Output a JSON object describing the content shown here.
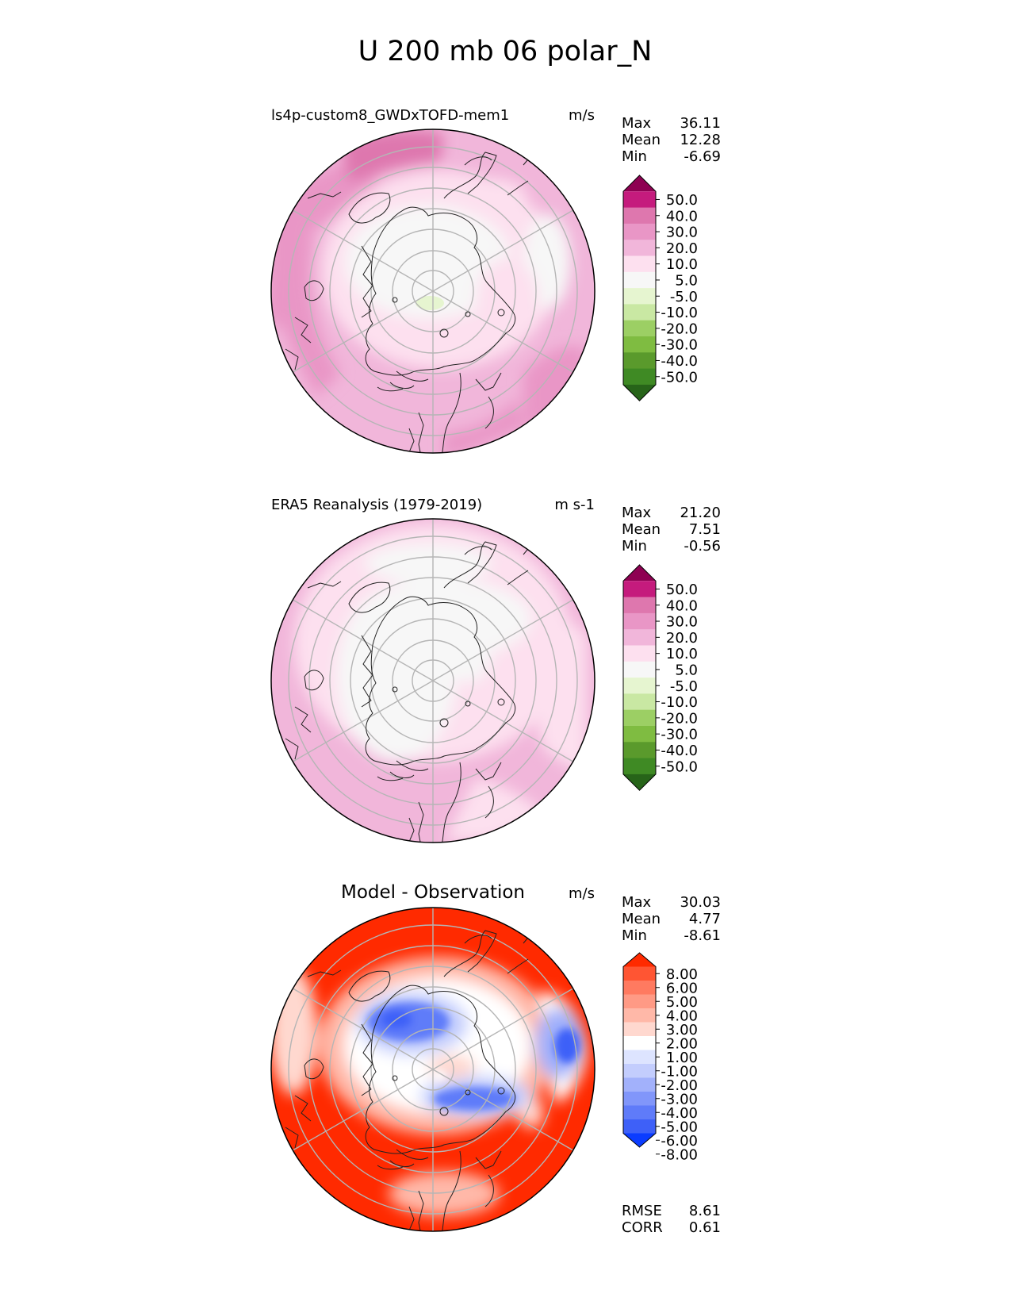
{
  "page_title": "U 200 mb 06 polar_N",
  "colors": {
    "seq": [
      "#8e0152",
      "#c51b7d",
      "#de77ae",
      "#e996c6",
      "#f1b6da",
      "#fde0ef",
      "#f7f7f7",
      "#e6f5d0",
      "#c9e8a3",
      "#9ccf64",
      "#7fbc41",
      "#5a9a2c",
      "#3f8a24",
      "#276419"
    ],
    "div": [
      "#ff2a00",
      "#ff5533",
      "#ff7a60",
      "#ff9a85",
      "#ffb8a8",
      "#ffd8cf",
      "#ffffff",
      "#dde4ff",
      "#c3cdfd",
      "#a2b1fb",
      "#8196fa",
      "#5f7bf9",
      "#3e60f8",
      "#0b3cff"
    ],
    "land": "#222222",
    "grid": "#b5b5b5"
  },
  "panels": [
    {
      "id": "model",
      "title": "ls4p-custom8_GWDxTOFD-mem1",
      "units": "m/s",
      "stats": [
        {
          "label": "Max",
          "value": "36.11"
        },
        {
          "label": "Mean",
          "value": "12.28"
        },
        {
          "label": "Min",
          "value": "-6.69"
        }
      ],
      "colorbar_ticks": [
        "50.0",
        "40.0",
        "30.0",
        "20.0",
        "10.0",
        "5.0",
        "-5.0",
        "-10.0",
        "-20.0",
        "-30.0",
        "-40.0",
        "-50.0"
      ]
    },
    {
      "id": "obs",
      "title": "ERA5 Reanalysis (1979-2019)",
      "units": "m s-1",
      "stats": [
        {
          "label": "Max",
          "value": "21.20"
        },
        {
          "label": "Mean",
          "value": "7.51"
        },
        {
          "label": "Min",
          "value": "-0.56"
        }
      ],
      "colorbar_ticks": [
        "50.0",
        "40.0",
        "30.0",
        "20.0",
        "10.0",
        "5.0",
        "-5.0",
        "-10.0",
        "-20.0",
        "-30.0",
        "-40.0",
        "-50.0"
      ]
    },
    {
      "id": "diff",
      "title": "Model - Observation",
      "units": "m/s",
      "stats": [
        {
          "label": "Max",
          "value": "30.03"
        },
        {
          "label": "Mean",
          "value": "4.77"
        },
        {
          "label": "Min",
          "value": "-8.61"
        }
      ],
      "colorbar_ticks": [
        "8.00",
        "6.00",
        "5.00",
        "4.00",
        "3.00",
        "2.00",
        "1.00",
        "-1.00",
        "-2.00",
        "-3.00",
        "-4.00",
        "-5.00",
        "-6.00",
        "-8.00"
      ],
      "metrics": [
        {
          "label": "RMSE",
          "value": "8.61"
        },
        {
          "label": "CORR",
          "value": "0.61"
        }
      ]
    }
  ],
  "chart_data": [
    {
      "type": "heatmap",
      "title": "ls4p-custom8_GWDxTOFD-mem1",
      "projection": "north polar stereographic",
      "variable": "U 200 mb",
      "units": "m/s",
      "levels": [
        -50,
        -40,
        -30,
        -20,
        -10,
        -5,
        5,
        10,
        20,
        30,
        40,
        50
      ],
      "summary": {
        "max": 36.11,
        "mean": 12.28,
        "min": -6.69
      }
    },
    {
      "type": "heatmap",
      "title": "ERA5 Reanalysis (1979-2019)",
      "projection": "north polar stereographic",
      "variable": "U 200 mb",
      "units": "m s-1",
      "levels": [
        -50,
        -40,
        -30,
        -20,
        -10,
        -5,
        5,
        10,
        20,
        30,
        40,
        50
      ],
      "summary": {
        "max": 21.2,
        "mean": 7.51,
        "min": -0.56
      }
    },
    {
      "type": "heatmap",
      "title": "Model - Observation",
      "projection": "north polar stereographic",
      "variable": "U 200 mb difference",
      "units": "m/s",
      "levels": [
        -8,
        -6,
        -5,
        -4,
        -3,
        -2,
        -1,
        1,
        2,
        3,
        4,
        5,
        6,
        8
      ],
      "summary": {
        "max": 30.03,
        "mean": 4.77,
        "min": -8.61,
        "rmse": 8.61,
        "corr": 0.61
      }
    }
  ]
}
